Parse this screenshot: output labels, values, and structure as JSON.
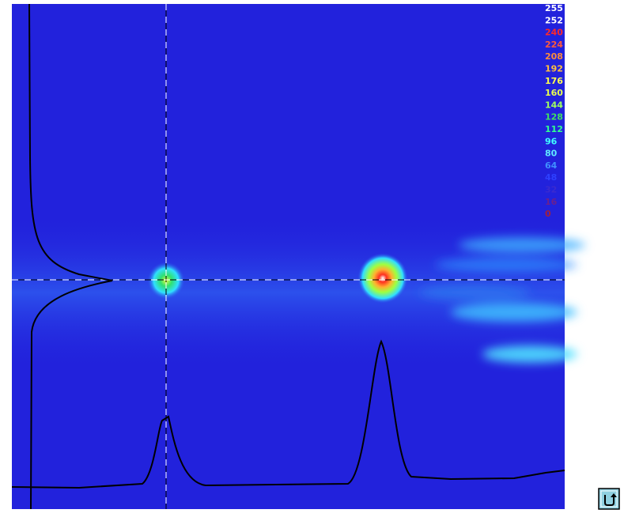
{
  "color_scale": [
    {
      "label": "255",
      "color": "#ffffff"
    },
    {
      "label": "252",
      "color": "#ffffff"
    },
    {
      "label": "240",
      "color": "#ff2a2a"
    },
    {
      "label": "224",
      "color": "#ff5a3a"
    },
    {
      "label": "208",
      "color": "#ff8c3a"
    },
    {
      "label": "192",
      "color": "#ffc040"
    },
    {
      "label": "176",
      "color": "#ffff50"
    },
    {
      "label": "160",
      "color": "#e8ff50"
    },
    {
      "label": "144",
      "color": "#a0ff60"
    },
    {
      "label": "128",
      "color": "#40e060"
    },
    {
      "label": "112",
      "color": "#30ff90"
    },
    {
      "label": "96",
      "color": "#40ffff"
    },
    {
      "label": "80",
      "color": "#60e8ff"
    },
    {
      "label": "64",
      "color": "#4090ff"
    },
    {
      "label": "48",
      "color": "#2e40ff"
    },
    {
      "label": "32",
      "color": "#3a2ad0"
    },
    {
      "label": "16",
      "color": "#6a2090"
    },
    {
      "label": "0",
      "color": "#a02040"
    }
  ]
}
